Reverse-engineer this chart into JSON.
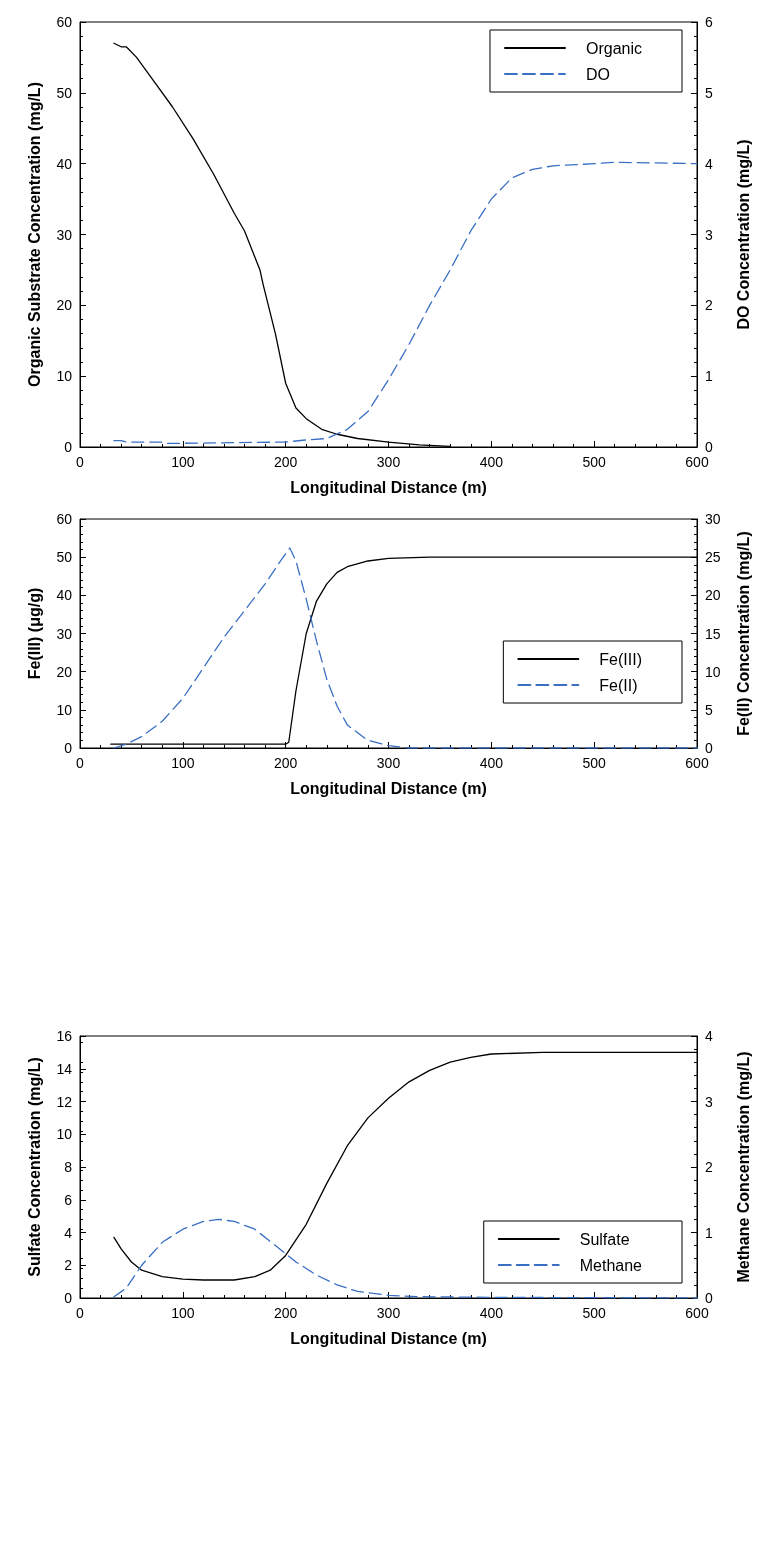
{
  "chart_data": [
    {
      "type": "line",
      "xlabel": "Longitudinal Distance (m)",
      "ylabel": "Organic Substrate Concentration (mg/L)",
      "y2label": "DO Concentration (mg/L)",
      "xlim": [
        0,
        600
      ],
      "xticks": [
        0,
        100,
        200,
        300,
        400,
        500,
        600
      ],
      "ylim": [
        0,
        60
      ],
      "yticks": [
        0,
        10,
        20,
        30,
        40,
        50,
        60
      ],
      "y2lim": [
        0,
        6
      ],
      "y2ticks": [
        0,
        1,
        2,
        3,
        4,
        5,
        6
      ],
      "grid": false,
      "legend": "top right",
      "marker": "none",
      "series": [
        {
          "name": "Organic",
          "color": "#000000",
          "line_style": "solid",
          "x": [
            33,
            40,
            45,
            55,
            70,
            90,
            110,
            130,
            150,
            160,
            175,
            178,
            190,
            200,
            210,
            220,
            235,
            250,
            270,
            300,
            330,
            360
          ],
          "values": [
            57,
            56.5,
            56.5,
            55,
            52,
            48,
            43.5,
            38.5,
            33,
            30.5,
            25,
            23,
            16,
            9,
            5.5,
            4,
            2.5,
            1.8,
            1.2,
            0.7,
            0.3,
            0.1
          ]
        },
        {
          "name": "DO",
          "color": "#3a6fc4",
          "line_style": "dashed",
          "axis": "y2",
          "x": [
            33,
            40,
            45,
            80,
            85,
            200,
            220,
            240,
            260,
            280,
            300,
            320,
            340,
            360,
            380,
            400,
            420,
            440,
            460,
            500,
            520,
            600
          ],
          "values": [
            0.09,
            0.09,
            0.07,
            0.07,
            0.05,
            0.07,
            0.1,
            0.12,
            0.25,
            0.5,
            0.95,
            1.45,
            2.0,
            2.5,
            3.05,
            3.5,
            3.8,
            3.92,
            3.97,
            4.0,
            4.02,
            4.0
          ]
        }
      ]
    },
    {
      "type": "line",
      "xlabel": "Longitudinal Distance (m)",
      "ylabel": "Fe(III) (μg/g)",
      "y2label": "Fe(II) Concentration (mg/L)",
      "xlim": [
        0,
        600
      ],
      "xticks": [
        0,
        100,
        200,
        300,
        400,
        500,
        600
      ],
      "ylim": [
        0,
        60
      ],
      "yticks": [
        0,
        10,
        20,
        30,
        40,
        50,
        60
      ],
      "y2lim": [
        0,
        30
      ],
      "y2ticks": [
        0,
        5,
        10,
        15,
        20,
        25,
        30
      ],
      "grid": false,
      "legend": "bottom right",
      "marker": "none",
      "series": [
        {
          "name": "Fe(III)",
          "color": "#000000",
          "line_style": "solid",
          "x": [
            30,
            200,
            203,
            210,
            220,
            230,
            240,
            250,
            260,
            280,
            300,
            340,
            600
          ],
          "values": [
            1,
            1,
            1.5,
            15,
            30,
            38.5,
            43,
            46,
            47.5,
            49,
            49.7,
            50,
            50
          ]
        },
        {
          "name": "Fe(II)",
          "color": "#3a6fc4",
          "line_style": "dashed",
          "axis": "y2",
          "x": [
            33,
            45,
            60,
            80,
            100,
            120,
            140,
            160,
            180,
            195,
            204,
            210,
            220,
            230,
            240,
            250,
            260,
            280,
            300,
            320,
            340,
            600
          ],
          "values": [
            0,
            0.5,
            1.5,
            3.5,
            6.5,
            10.5,
            14.5,
            18,
            21.5,
            24.5,
            26.2,
            24.5,
            19.5,
            14,
            9,
            5.5,
            3,
            1,
            0.3,
            0,
            0,
            0
          ]
        }
      ]
    },
    {
      "type": "line",
      "xlabel": "Longitudinal Distance (m)",
      "ylabel": "Sulfate Concentration (mg/L)",
      "y2label": "Methane Concentration (mg/L)",
      "xlim": [
        0,
        600
      ],
      "xticks": [
        0,
        100,
        200,
        300,
        400,
        500,
        600
      ],
      "ylim": [
        0,
        16
      ],
      "yticks": [
        0,
        2,
        4,
        6,
        8,
        10,
        12,
        14,
        16
      ],
      "y2lim": [
        0,
        4
      ],
      "y2ticks": [
        0,
        1,
        2,
        3,
        4
      ],
      "grid": false,
      "legend": "bottom right",
      "marker": "none",
      "series": [
        {
          "name": "Sulfate",
          "color": "#000000",
          "line_style": "solid",
          "x": [
            33,
            40,
            50,
            60,
            80,
            100,
            120,
            150,
            170,
            185,
            200,
            220,
            240,
            260,
            280,
            300,
            320,
            340,
            360,
            380,
            400,
            450,
            600
          ],
          "values": [
            3.7,
            3,
            2.2,
            1.7,
            1.3,
            1.15,
            1.1,
            1.1,
            1.3,
            1.7,
            2.6,
            4.5,
            7,
            9.3,
            11,
            12.2,
            13.2,
            13.9,
            14.4,
            14.7,
            14.9,
            15,
            15
          ]
        },
        {
          "name": "Methane",
          "color": "#3a6fc4",
          "line_style": "dashed",
          "axis": "y2",
          "x": [
            33,
            45,
            60,
            80,
            100,
            120,
            135,
            150,
            170,
            190,
            210,
            230,
            250,
            270,
            300,
            330,
            400,
            600
          ],
          "values": [
            0.02,
            0.15,
            0.5,
            0.85,
            1.05,
            1.17,
            1.2,
            1.17,
            1.05,
            0.8,
            0.55,
            0.35,
            0.2,
            0.1,
            0.04,
            0.02,
            0.01,
            0
          ]
        }
      ]
    }
  ]
}
